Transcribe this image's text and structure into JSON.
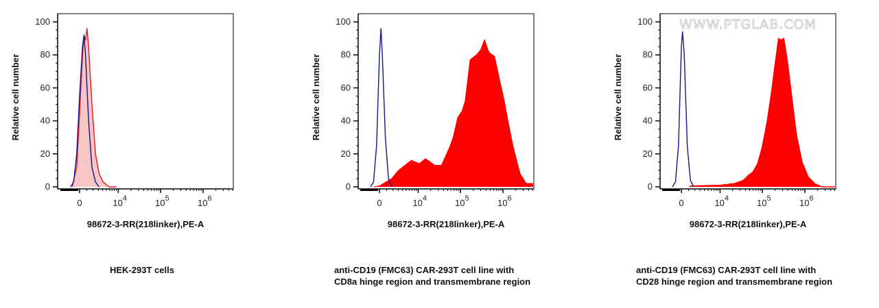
{
  "watermark": "WWW.PTGLAB.COM",
  "chart_data": [
    {
      "type": "area",
      "xlabel": "98672-3-RR(218linker),PE-A",
      "ylabel": "Relative cell number",
      "caption": [
        "HEK-293T cells"
      ],
      "xscale": "biexponential",
      "xlim": [
        -3500,
        5400000
      ],
      "ylim": [
        0,
        100
      ],
      "xticks": [
        "0",
        "10^4",
        "10^5",
        "10^6"
      ],
      "yticks": [
        "0",
        "20",
        "40",
        "60",
        "80",
        "100"
      ],
      "series": [
        {
          "color": "#e8141c",
          "fill": "#f9c6c6",
          "style": "filled",
          "x": [
            -1030,
            -394,
            0,
            394,
            600,
            809,
            1030,
            1268,
            1800,
            2420,
            3160,
            4080,
            5900,
            9000
          ],
          "y": [
            0,
            12,
            45,
            80,
            92,
            89,
            96,
            85,
            50,
            20,
            8,
            3,
            0,
            0
          ]
        },
        {
          "color": "#14148c",
          "style": "line",
          "x": [
            -1268,
            -809,
            -394,
            0,
            394,
            600,
            809,
            1268,
            1800,
            2420,
            3160
          ],
          "y": [
            0,
            3,
            20,
            55,
            85,
            92,
            80,
            40,
            12,
            3,
            0
          ]
        }
      ]
    },
    {
      "type": "area",
      "xlabel": "98672-3-RR(218linker),PE-A",
      "ylabel": "Relative cell number",
      "caption": [
        "anti-CD19 (FMC63) CAR-293T cell line with",
        "CD8a hinge region and transmembrane region"
      ],
      "xscale": "biexponential",
      "xlim": [
        -3500,
        5400000
      ],
      "ylim": [
        0,
        100
      ],
      "xticks": [
        "0",
        "10^4",
        "10^5",
        "10^6"
      ],
      "yticks": [
        "0",
        "20",
        "40",
        "60",
        "80",
        "100"
      ],
      "series": [
        {
          "color": "#ff0000",
          "fill": "#ff0000",
          "style": "filled",
          "x": [
            -680,
            0,
            1800,
            3100,
            6800,
            10600,
            15000,
            25000,
            36000,
            44000,
            56000,
            68000,
            87000,
            110000,
            130000,
            170000,
            240000,
            300000,
            370000,
            440000,
            490000,
            630000,
            810000,
            1050000,
            1300000,
            1700000,
            2500000,
            3500000,
            5100000
          ],
          "y": [
            0,
            0.5,
            5,
            10,
            16,
            14,
            17,
            13,
            13,
            18,
            24,
            30,
            42,
            46,
            52,
            77,
            80,
            83,
            89,
            83,
            81,
            79,
            66,
            53,
            40,
            25,
            8,
            2,
            2
          ]
        },
        {
          "color": "#14148c",
          "style": "line",
          "x": [
            -1268,
            -809,
            -394,
            0,
            200,
            394,
            809,
            1268,
            1800
          ],
          "y": [
            0,
            3,
            25,
            80,
            96,
            80,
            30,
            5,
            0
          ]
        }
      ]
    },
    {
      "type": "area",
      "xlabel": "98672-3-RR(218linker),PE-A",
      "ylabel": "Relative cell number",
      "caption": [
        "anti-CD19 (FMC63) CAR-293T cell line with",
        "CD28 hinge region and transmembrane region"
      ],
      "xscale": "biexponential",
      "xlim": [
        -3500,
        5400000
      ],
      "ylim": [
        0,
        100
      ],
      "xticks": [
        "0",
        "10^4",
        "10^5",
        "10^6"
      ],
      "yticks": [
        "0",
        "20",
        "40",
        "60",
        "80",
        "100"
      ],
      "series": [
        {
          "color": "#ff0000",
          "fill": "#ff0000",
          "style": "filled",
          "x": [
            1130,
            10000,
            22000,
            36000,
            47000,
            60000,
            77000,
            99000,
            130000,
            165000,
            200000,
            240000,
            270000,
            320000,
            385000,
            490000,
            630000,
            860000,
            1200000,
            1700000,
            2500000,
            5100000
          ],
          "y": [
            0.5,
            1,
            2,
            4,
            7,
            9,
            14,
            24,
            40,
            58,
            75,
            90,
            89,
            90,
            77,
            55,
            32,
            15,
            6,
            2,
            0,
            0
          ]
        },
        {
          "color": "#14148c",
          "style": "line",
          "x": [
            -1268,
            -809,
            -394,
            0,
            160,
            394,
            809,
            1268,
            1800
          ],
          "y": [
            0,
            3,
            25,
            85,
            94,
            80,
            25,
            4,
            0
          ]
        }
      ]
    }
  ]
}
